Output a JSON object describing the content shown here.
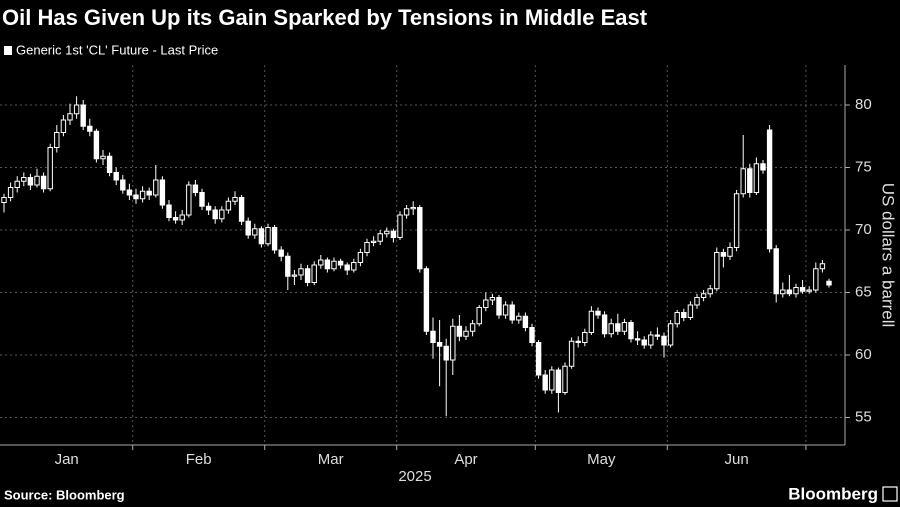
{
  "chart_data": {
    "type": "candlestick",
    "title": "Oil Has Given Up its Gain Sparked by Tensions in Middle East",
    "ylabel": "US dollars a barrell",
    "xlabel": "2025",
    "source": "Source: Bloomberg",
    "brand": "Bloomberg",
    "ylim": [
      52.8,
      83.2
    ],
    "yticks": [
      55,
      60,
      65,
      70,
      75,
      80
    ],
    "grid": true,
    "categories": [
      "Jan",
      "Jan",
      "Jan",
      "Jan",
      "Jan",
      "Jan",
      "Jan",
      "Jan",
      "Jan",
      "Jan",
      "Jan",
      "Jan",
      "Jan",
      "Jan",
      "Jan",
      "Jan",
      "Jan",
      "Jan",
      "Jan",
      "Jan",
      "Feb",
      "Feb",
      "Feb",
      "Feb",
      "Feb",
      "Feb",
      "Feb",
      "Feb",
      "Feb",
      "Feb",
      "Feb",
      "Feb",
      "Feb",
      "Feb",
      "Feb",
      "Feb",
      "Feb",
      "Feb",
      "Feb",
      "Feb",
      "Mar",
      "Mar",
      "Mar",
      "Mar",
      "Mar",
      "Mar",
      "Mar",
      "Mar",
      "Mar",
      "Mar",
      "Mar",
      "Mar",
      "Mar",
      "Mar",
      "Mar",
      "Mar",
      "Mar",
      "Mar",
      "Mar",
      "Mar",
      "Apr",
      "Apr",
      "Apr",
      "Apr",
      "Apr",
      "Apr",
      "Apr",
      "Apr",
      "Apr",
      "Apr",
      "Apr",
      "Apr",
      "Apr",
      "Apr",
      "Apr",
      "Apr",
      "Apr",
      "Apr",
      "Apr",
      "Apr",
      "Apr",
      "May",
      "May",
      "May",
      "May",
      "May",
      "May",
      "May",
      "May",
      "May",
      "May",
      "May",
      "May",
      "May",
      "May",
      "May",
      "May",
      "May",
      "May",
      "May",
      "May",
      "Jun",
      "Jun",
      "Jun",
      "Jun",
      "Jun",
      "Jun",
      "Jun",
      "Jun",
      "Jun",
      "Jun",
      "Jun",
      "Jun",
      "Jun",
      "Jun",
      "Jun",
      "Jun",
      "Jun",
      "Jun",
      "Jun",
      "Jun",
      "Jun",
      null,
      null,
      null,
      null
    ],
    "series": [
      {
        "name": "Generic 1st 'CL' Future - Last Price",
        "color": "#ffffff",
        "values": [
          [
            72.2,
            72.9,
            71.4,
            72.6
          ],
          [
            72.6,
            73.8,
            72.3,
            73.4
          ],
          [
            73.4,
            74.3,
            73.0,
            73.9
          ],
          [
            73.9,
            74.6,
            73.5,
            74.2
          ],
          [
            74.2,
            74.5,
            73.2,
            73.6
          ],
          [
            73.6,
            74.9,
            73.4,
            74.3
          ],
          [
            74.3,
            74.6,
            73.0,
            73.3
          ],
          [
            73.3,
            76.9,
            73.1,
            76.6
          ],
          [
            76.6,
            78.4,
            76.2,
            77.8
          ],
          [
            77.8,
            79.2,
            77.5,
            78.8
          ],
          [
            78.8,
            80.1,
            78.4,
            79.3
          ],
          [
            79.3,
            80.7,
            78.9,
            80.0
          ],
          [
            80.0,
            80.4,
            78.0,
            78.3
          ],
          [
            78.3,
            78.9,
            77.5,
            77.9
          ],
          [
            77.9,
            78.1,
            75.4,
            75.7
          ],
          [
            75.7,
            76.4,
            75.2,
            75.9
          ],
          [
            75.9,
            76.2,
            74.3,
            74.6
          ],
          [
            74.6,
            75.0,
            73.6,
            74.0
          ],
          [
            74.0,
            74.4,
            72.9,
            73.2
          ],
          [
            73.2,
            73.7,
            72.4,
            72.8
          ],
          [
            72.8,
            73.3,
            72.1,
            72.5
          ],
          [
            72.5,
            73.5,
            72.2,
            73.1
          ],
          [
            73.1,
            73.4,
            72.4,
            72.8
          ],
          [
            72.8,
            75.2,
            72.6,
            74.0
          ],
          [
            74.0,
            74.3,
            71.7,
            72.0
          ],
          [
            72.0,
            72.4,
            70.7,
            71.0
          ],
          [
            71.0,
            71.5,
            70.5,
            70.8
          ],
          [
            70.8,
            71.6,
            70.4,
            71.2
          ],
          [
            71.2,
            73.9,
            71.0,
            73.6
          ],
          [
            73.6,
            74.0,
            72.7,
            73.0
          ],
          [
            73.0,
            73.3,
            71.6,
            71.9
          ],
          [
            71.9,
            72.2,
            71.2,
            71.6
          ],
          [
            71.6,
            71.9,
            70.5,
            70.9
          ],
          [
            70.9,
            71.9,
            70.6,
            71.6
          ],
          [
            71.6,
            72.6,
            71.3,
            72.3
          ],
          [
            72.3,
            73.1,
            72.0,
            72.6
          ],
          [
            72.6,
            72.8,
            70.4,
            70.7
          ],
          [
            70.7,
            71.0,
            69.3,
            69.6
          ],
          [
            69.6,
            70.5,
            69.3,
            70.1
          ],
          [
            70.1,
            70.3,
            68.6,
            68.9
          ],
          [
            68.9,
            70.5,
            68.7,
            70.2
          ],
          [
            70.2,
            70.4,
            68.1,
            68.4
          ],
          [
            68.4,
            68.7,
            67.5,
            67.9
          ],
          [
            67.9,
            68.2,
            65.2,
            66.3
          ],
          [
            66.3,
            66.8,
            65.6,
            66.4
          ],
          [
            66.4,
            67.3,
            66.0,
            66.9
          ],
          [
            66.9,
            67.2,
            65.5,
            65.8
          ],
          [
            65.8,
            67.5,
            65.6,
            67.2
          ],
          [
            67.2,
            68.0,
            66.9,
            67.6
          ],
          [
            67.6,
            67.8,
            66.6,
            66.9
          ],
          [
            66.9,
            67.8,
            66.7,
            67.5
          ],
          [
            67.5,
            67.7,
            66.9,
            67.2
          ],
          [
            67.2,
            67.4,
            66.4,
            66.8
          ],
          [
            66.8,
            67.7,
            66.6,
            67.4
          ],
          [
            67.4,
            68.5,
            67.1,
            68.2
          ],
          [
            68.2,
            69.3,
            67.9,
            69.0
          ],
          [
            69.0,
            69.5,
            68.7,
            69.1
          ],
          [
            69.1,
            70.0,
            68.8,
            69.7
          ],
          [
            69.7,
            70.2,
            69.4,
            69.9
          ],
          [
            69.9,
            70.1,
            69.0,
            69.4
          ],
          [
            69.4,
            71.5,
            69.2,
            71.2
          ],
          [
            71.2,
            72.0,
            70.9,
            71.7
          ],
          [
            71.7,
            72.3,
            71.2,
            71.8
          ],
          [
            71.8,
            72.0,
            66.6,
            66.9
          ],
          [
            66.9,
            67.1,
            61.6,
            61.9
          ],
          [
            61.9,
            63.0,
            59.7,
            61.0
          ],
          [
            61.0,
            62.8,
            57.5,
            60.7
          ],
          [
            60.7,
            61.3,
            55.1,
            59.6
          ],
          [
            59.6,
            62.9,
            58.4,
            62.3
          ],
          [
            62.3,
            63.2,
            61.1,
            61.5
          ],
          [
            61.5,
            62.3,
            61.2,
            61.9
          ],
          [
            61.9,
            62.8,
            61.5,
            62.5
          ],
          [
            62.5,
            64.0,
            62.3,
            63.8
          ],
          [
            63.8,
            65.0,
            63.5,
            64.4
          ],
          [
            64.4,
            64.9,
            64.0,
            64.6
          ],
          [
            64.6,
            64.8,
            62.9,
            63.2
          ],
          [
            63.2,
            64.3,
            62.9,
            64.0
          ],
          [
            64.0,
            64.3,
            62.5,
            62.8
          ],
          [
            62.8,
            63.4,
            62.5,
            63.1
          ],
          [
            63.1,
            63.4,
            61.9,
            62.2
          ],
          [
            62.2,
            62.5,
            60.7,
            61.0
          ],
          [
            61.0,
            61.2,
            58.1,
            58.4
          ],
          [
            58.4,
            58.8,
            56.9,
            57.2
          ],
          [
            57.2,
            59.1,
            56.9,
            58.8
          ],
          [
            58.8,
            59.0,
            55.4,
            57.0
          ],
          [
            57.0,
            59.4,
            56.8,
            59.1
          ],
          [
            59.1,
            61.4,
            58.9,
            61.1
          ],
          [
            61.1,
            61.5,
            60.6,
            61.0
          ],
          [
            61.0,
            62.1,
            60.7,
            61.8
          ],
          [
            61.8,
            63.9,
            61.6,
            63.5
          ],
          [
            63.5,
            63.8,
            62.9,
            63.2
          ],
          [
            63.2,
            63.5,
            61.4,
            61.7
          ],
          [
            61.7,
            62.9,
            61.4,
            62.5
          ],
          [
            62.5,
            63.3,
            61.6,
            61.9
          ],
          [
            61.9,
            62.9,
            61.6,
            62.6
          ],
          [
            62.6,
            62.8,
            61.0,
            61.3
          ],
          [
            61.3,
            61.9,
            60.8,
            61.2
          ],
          [
            61.2,
            61.5,
            60.5,
            60.8
          ],
          [
            60.8,
            61.9,
            60.5,
            61.6
          ],
          [
            61.6,
            62.2,
            61.2,
            61.5
          ],
          [
            61.5,
            61.8,
            59.8,
            60.8
          ],
          [
            60.8,
            62.8,
            60.6,
            62.5
          ],
          [
            62.5,
            63.6,
            62.2,
            63.4
          ],
          [
            63.4,
            63.7,
            62.7,
            63.0
          ],
          [
            63.0,
            64.3,
            62.8,
            64.0
          ],
          [
            64.0,
            64.9,
            63.7,
            64.6
          ],
          [
            64.6,
            65.2,
            64.3,
            64.9
          ],
          [
            64.9,
            65.6,
            64.6,
            65.3
          ],
          [
            65.3,
            68.6,
            65.1,
            68.2
          ],
          [
            68.2,
            68.5,
            67.0,
            67.9
          ],
          [
            67.9,
            69.0,
            67.6,
            68.6
          ],
          [
            68.6,
            73.2,
            68.3,
            72.9
          ],
          [
            72.9,
            77.6,
            72.6,
            74.9
          ],
          [
            74.9,
            75.3,
            72.6,
            73.0
          ],
          [
            73.0,
            75.8,
            72.8,
            75.3
          ],
          [
            75.3,
            75.6,
            74.5,
            74.8
          ],
          [
            78.0,
            78.4,
            68.2,
            68.5
          ],
          [
            68.5,
            68.8,
            64.2,
            64.9
          ],
          [
            64.9,
            65.8,
            64.6,
            65.2
          ],
          [
            65.2,
            66.4,
            64.7,
            64.9
          ],
          [
            64.9,
            65.7,
            64.6,
            65.4
          ],
          [
            65.4,
            66.0,
            64.9,
            65.1
          ],
          [
            65.1,
            65.5,
            64.9,
            65.2
          ],
          [
            65.2,
            67.4,
            65.0,
            66.9
          ],
          [
            66.9,
            67.6,
            66.6,
            67.3
          ],
          [
            65.9,
            66.1,
            65.4,
            65.6
          ]
        ]
      }
    ]
  }
}
